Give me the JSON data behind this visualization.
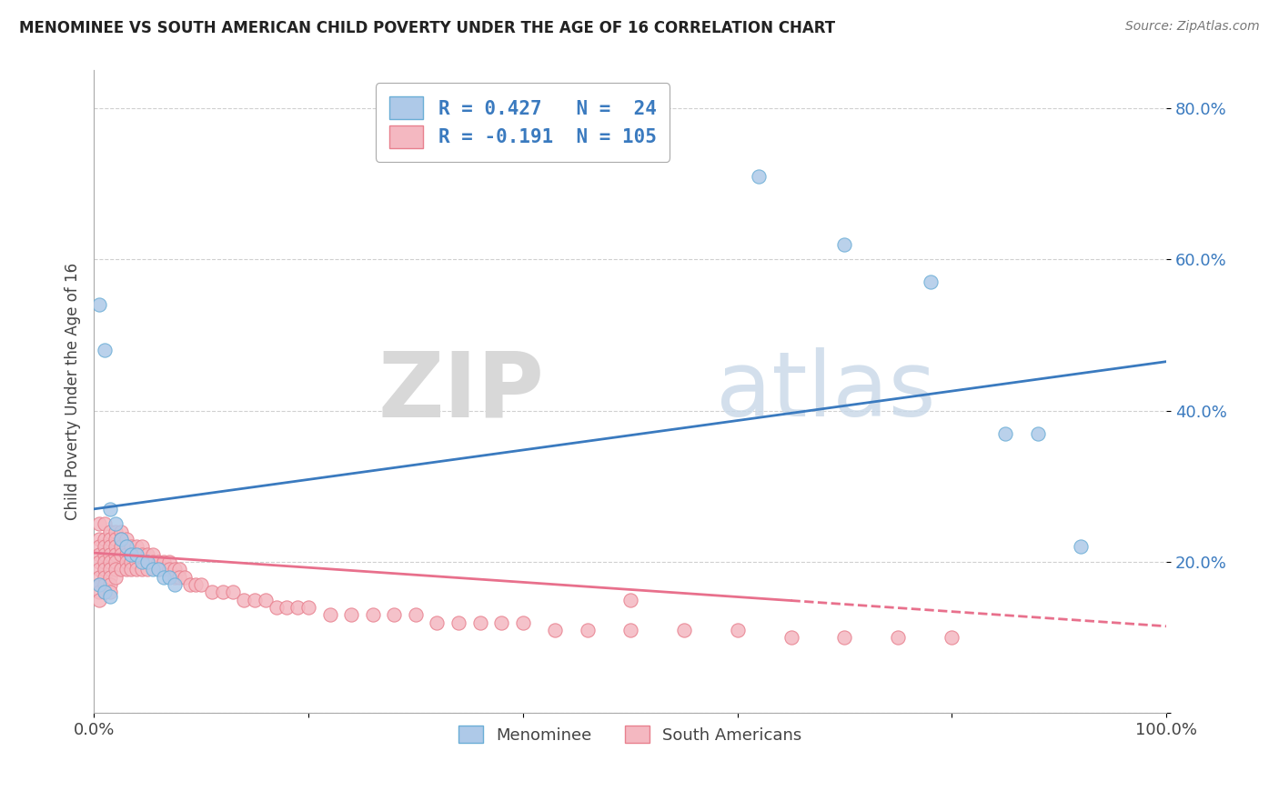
{
  "title": "MENOMINEE VS SOUTH AMERICAN CHILD POVERTY UNDER THE AGE OF 16 CORRELATION CHART",
  "source": "Source: ZipAtlas.com",
  "ylabel": "Child Poverty Under the Age of 16",
  "xlabel": "",
  "xlim": [
    0.0,
    1.0
  ],
  "ylim": [
    0.0,
    0.85
  ],
  "yticks": [
    0.0,
    0.2,
    0.4,
    0.6,
    0.8
  ],
  "ytick_labels": [
    "",
    "20.0%",
    "40.0%",
    "60.0%",
    "80.0%"
  ],
  "xticks": [
    0.0,
    0.2,
    0.4,
    0.6,
    0.8,
    1.0
  ],
  "xtick_labels": [
    "0.0%",
    "",
    "",
    "",
    "",
    "100.0%"
  ],
  "legend_label1": "Menominee",
  "legend_label2": "South Americans",
  "r1": 0.427,
  "n1": 24,
  "r2": -0.191,
  "n2": 105,
  "scatter_menominee_x": [
    0.005,
    0.01,
    0.015,
    0.02,
    0.025,
    0.03,
    0.035,
    0.04,
    0.045,
    0.05,
    0.055,
    0.06,
    0.065,
    0.07,
    0.075,
    0.005,
    0.01,
    0.015,
    0.62,
    0.7,
    0.78,
    0.85,
    0.88,
    0.92
  ],
  "scatter_menominee_y": [
    0.54,
    0.48,
    0.27,
    0.25,
    0.23,
    0.22,
    0.21,
    0.21,
    0.2,
    0.2,
    0.19,
    0.19,
    0.18,
    0.18,
    0.17,
    0.17,
    0.16,
    0.155,
    0.71,
    0.62,
    0.57,
    0.37,
    0.37,
    0.22
  ],
  "scatter_sa_x": [
    0.005,
    0.005,
    0.005,
    0.005,
    0.005,
    0.005,
    0.005,
    0.005,
    0.005,
    0.005,
    0.01,
    0.01,
    0.01,
    0.01,
    0.01,
    0.01,
    0.01,
    0.01,
    0.01,
    0.015,
    0.015,
    0.015,
    0.015,
    0.015,
    0.015,
    0.015,
    0.015,
    0.015,
    0.02,
    0.02,
    0.02,
    0.02,
    0.02,
    0.02,
    0.02,
    0.025,
    0.025,
    0.025,
    0.025,
    0.025,
    0.03,
    0.03,
    0.03,
    0.03,
    0.03,
    0.035,
    0.035,
    0.035,
    0.035,
    0.04,
    0.04,
    0.04,
    0.04,
    0.045,
    0.045,
    0.045,
    0.05,
    0.05,
    0.05,
    0.055,
    0.055,
    0.06,
    0.06,
    0.065,
    0.065,
    0.07,
    0.07,
    0.075,
    0.075,
    0.08,
    0.08,
    0.085,
    0.09,
    0.095,
    0.1,
    0.11,
    0.12,
    0.13,
    0.14,
    0.15,
    0.16,
    0.17,
    0.18,
    0.19,
    0.2,
    0.22,
    0.24,
    0.26,
    0.28,
    0.3,
    0.32,
    0.34,
    0.36,
    0.38,
    0.4,
    0.43,
    0.46,
    0.5,
    0.55,
    0.6,
    0.65,
    0.7,
    0.75,
    0.8,
    0.5
  ],
  "scatter_sa_y": [
    0.25,
    0.23,
    0.22,
    0.21,
    0.2,
    0.19,
    0.18,
    0.17,
    0.16,
    0.15,
    0.25,
    0.23,
    0.22,
    0.21,
    0.2,
    0.19,
    0.18,
    0.17,
    0.16,
    0.24,
    0.23,
    0.22,
    0.21,
    0.2,
    0.19,
    0.18,
    0.17,
    0.16,
    0.24,
    0.23,
    0.22,
    0.21,
    0.2,
    0.19,
    0.18,
    0.24,
    0.23,
    0.22,
    0.21,
    0.19,
    0.23,
    0.22,
    0.21,
    0.2,
    0.19,
    0.22,
    0.21,
    0.2,
    0.19,
    0.22,
    0.21,
    0.2,
    0.19,
    0.22,
    0.21,
    0.19,
    0.21,
    0.2,
    0.19,
    0.21,
    0.2,
    0.2,
    0.19,
    0.2,
    0.19,
    0.2,
    0.19,
    0.19,
    0.18,
    0.19,
    0.18,
    0.18,
    0.17,
    0.17,
    0.17,
    0.16,
    0.16,
    0.16,
    0.15,
    0.15,
    0.15,
    0.14,
    0.14,
    0.14,
    0.14,
    0.13,
    0.13,
    0.13,
    0.13,
    0.13,
    0.12,
    0.12,
    0.12,
    0.12,
    0.12,
    0.11,
    0.11,
    0.11,
    0.11,
    0.11,
    0.1,
    0.1,
    0.1,
    0.1,
    0.15
  ],
  "menominee_color": "#aec9e8",
  "menominee_edge_color": "#6baed6",
  "sa_color": "#f4b8c1",
  "sa_edge_color": "#e8808e",
  "menominee_line_color": "#3a7abf",
  "sa_line_color": "#e8708c",
  "watermark_zip": "ZIP",
  "watermark_atlas": "atlas",
  "background_color": "#ffffff",
  "grid_color": "#d0d0d0",
  "men_line_x0": 0.0,
  "men_line_x1": 1.0,
  "men_line_y0": 0.27,
  "men_line_y1": 0.465,
  "sa_line_x0": 0.0,
  "sa_line_x1": 1.0,
  "sa_line_y0": 0.212,
  "sa_line_y1": 0.115
}
